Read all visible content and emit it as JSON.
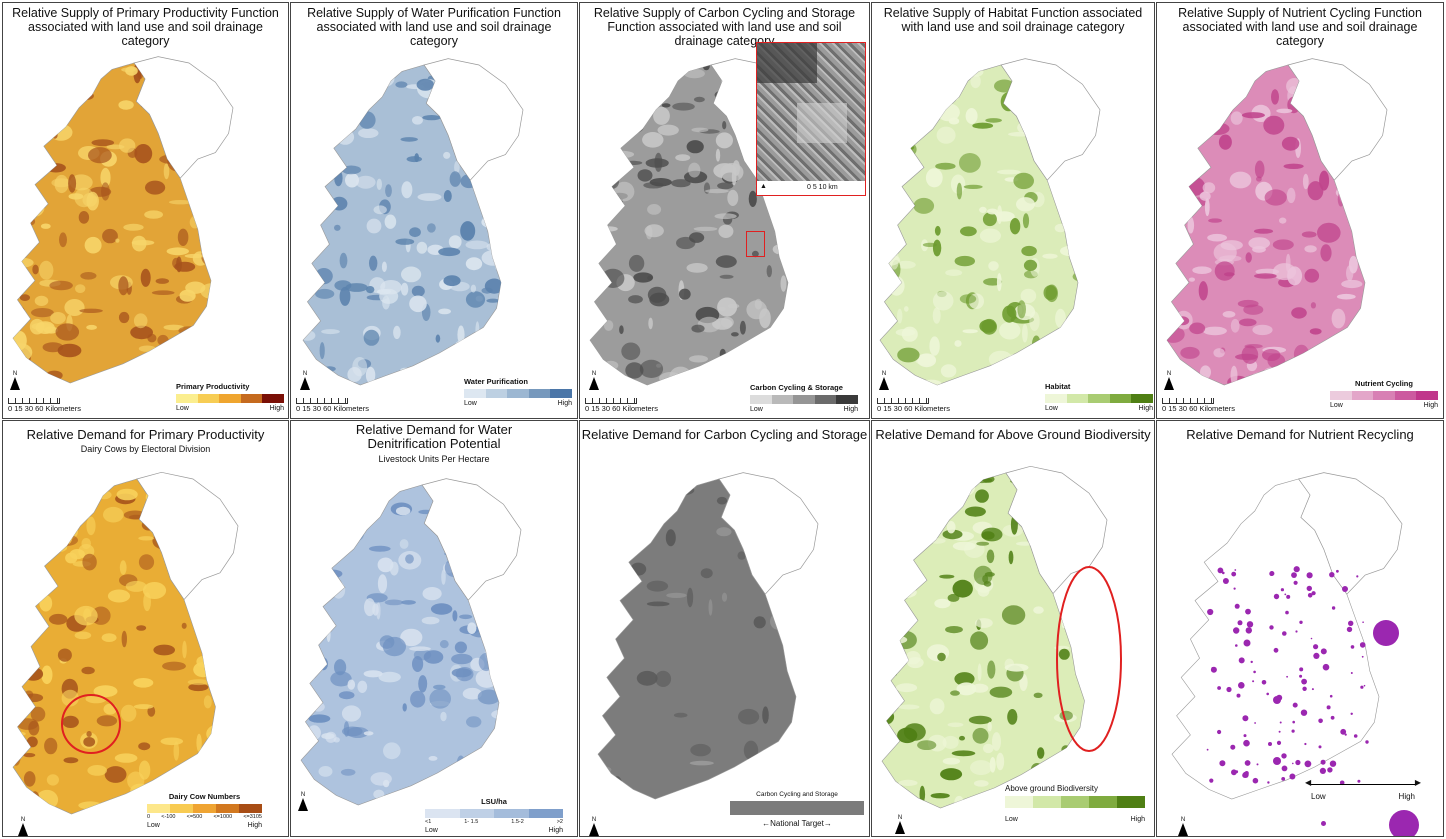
{
  "north_label": "N",
  "scale": {
    "ticks": "0  15 30       60 Kilometers"
  },
  "supply": [
    {
      "title": "Relative Supply of Primary Productivity Function associated with land use and soil drainage category",
      "legend": {
        "title": "Primary Productivity",
        "low": "Low",
        "high": "High"
      },
      "colors": {
        "main": "#e2a437",
        "light": "#f7d56a",
        "dark": "#a6521c"
      },
      "ramp": [
        "#fbee8f",
        "#f7cd54",
        "#efa52f",
        "#c56a1e",
        "#7a0f06"
      ]
    },
    {
      "title": "Relative Supply of Water Purification Function associated with land use and soil drainage category",
      "legend": {
        "title": "Water Purification",
        "low": "Low",
        "high": "High"
      },
      "colors": {
        "main": "#a9bfd6",
        "light": "#dbe5ef",
        "dark": "#5b82ad"
      },
      "ramp": [
        "#dde7f1",
        "#bdd0e2",
        "#9cb7d2",
        "#7799bd",
        "#4b76a8"
      ]
    },
    {
      "title": "Relative Supply of Carbon Cycling and Storage Function associated with land use and soil drainage category",
      "legend": {
        "title": "Carbon Cycling & Storage",
        "low": "Low",
        "high": "High"
      },
      "colors": {
        "main": "#9c9c9c",
        "light": "#c8c8c8",
        "dark": "#4c4c4c"
      },
      "ramp": [
        "#dcdcdc",
        "#b9b9b9",
        "#959595",
        "#6b6b6b",
        "#3a3a3a"
      ],
      "inset": {
        "scale": "0    5    10 km"
      }
    },
    {
      "title": "Relative Supply of Habitat Function associated with land use and soil drainage category",
      "legend": {
        "title": "Habitat",
        "low": "Low",
        "high": "High"
      },
      "colors": {
        "main": "#dbecb9",
        "light": "#eef6d8",
        "dark": "#6b9a2c"
      },
      "ramp": [
        "#eef6d8",
        "#d2e8a8",
        "#a9cc72",
        "#7fab3f",
        "#4f7f14"
      ]
    },
    {
      "title": "Relative Supply of Nutrient Cycling Function associated with land use and soil drainage category",
      "legend": {
        "title": "Nutrient Cycling",
        "low": "Low",
        "high": "High"
      },
      "colors": {
        "main": "#dc8cb8",
        "light": "#ecc5dc",
        "dark": "#c0448c"
      },
      "ramp": [
        "#eccbdd",
        "#e3a6c9",
        "#d880b4",
        "#cc5a9f",
        "#c0378b"
      ]
    }
  ],
  "demand": [
    {
      "title": "Relative Demand for Primary Productivity",
      "subtitle": "Dairy Cows by Electoral  Division",
      "legend": {
        "title": "Dairy Cow Numbers",
        "low": "Low",
        "high": "High",
        "ticks": [
          "0",
          "<-100",
          "<=500",
          "<=1000",
          "<=3105"
        ]
      },
      "colors": {
        "main": "#e9ad35",
        "light": "#f8d25c",
        "dark": "#a9571c"
      },
      "ramp": [
        "#fde78a",
        "#f8cb52",
        "#efa432",
        "#d2781f",
        "#a84d15"
      ]
    },
    {
      "title": "Relative Demand for Water Denitrification Potential",
      "subtitle": "Livestock Units Per Hectare",
      "legend": {
        "title": "LSU/ha",
        "low": "Low",
        "high": "High",
        "ticks": [
          "<1",
          "1- 1.5",
          "1.5-2",
          ">2"
        ]
      },
      "colors": {
        "main": "#aec3de",
        "light": "#d8e2ef",
        "dark": "#6d8fc0"
      },
      "ramp": [
        "#dbe4f1",
        "#bfd0e6",
        "#a4bcdb",
        "#7f9fcb"
      ]
    },
    {
      "title": "Relative Demand for Carbon Cycling and Storage",
      "legend": {
        "title": "Carbon Cycling and Storage",
        "footer": "←National Target→"
      },
      "colors": {
        "main": "#7c7c7c",
        "light": "#9a9a9a",
        "dark": "#5a5a5a"
      },
      "ramp": [
        "#7b7b7b"
      ]
    },
    {
      "title": "Relative Demand for Above Ground Biodiversity",
      "legend": {
        "title": "Above ground Biodiversity",
        "low": "Low",
        "high": "High"
      },
      "colors": {
        "main": "#dcedb8",
        "light": "#eef6d8",
        "dark": "#4f7f14"
      },
      "ramp": [
        "#eef6d8",
        "#d2e8a8",
        "#a9cc72",
        "#7fab3f",
        "#4f7f14"
      ]
    },
    {
      "title": "Relative Demand for Nutrient Recycling",
      "legend": {
        "low": "Low",
        "high": "High"
      },
      "colors": {
        "main": "#ffffff",
        "light": "#ffffff",
        "dark": "#9b27b0"
      },
      "ramp": []
    }
  ]
}
